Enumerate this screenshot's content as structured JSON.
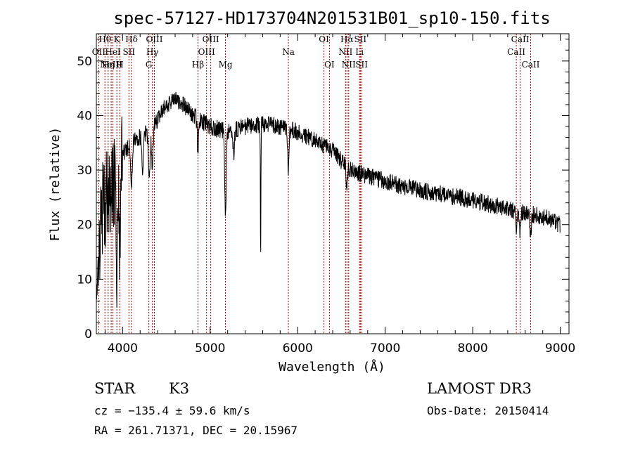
{
  "chart_data": {
    "type": "line",
    "title": "spec-57127-HD173704N201531B01_sp10-150.fits",
    "xlabel": "Wavelength (Å)",
    "ylabel": "Flux (relative)",
    "xlim": [
      3700,
      9100
    ],
    "ylim": [
      0,
      55
    ],
    "x_ticks": [
      4000,
      5000,
      6000,
      7000,
      8000,
      9000
    ],
    "y_ticks": [
      0,
      10,
      20,
      30,
      40,
      50
    ],
    "x_tick_labels": [
      "4000",
      "5000",
      "6000",
      "7000",
      "8000",
      "9000"
    ],
    "y_tick_labels": [
      "0",
      "10",
      "20",
      "30",
      "40",
      "50"
    ],
    "continuum": [
      [
        3700,
        8
      ],
      [
        3750,
        22
      ],
      [
        3800,
        24
      ],
      [
        3850,
        26
      ],
      [
        3900,
        28
      ],
      [
        3950,
        30
      ],
      [
        4000,
        33
      ],
      [
        4100,
        35
      ],
      [
        4200,
        36
      ],
      [
        4300,
        37
      ],
      [
        4400,
        39
      ],
      [
        4500,
        42
      ],
      [
        4600,
        43
      ],
      [
        4700,
        42
      ],
      [
        4800,
        40
      ],
      [
        4900,
        39
      ],
      [
        5000,
        38
      ],
      [
        5200,
        37
      ],
      [
        5400,
        38
      ],
      [
        5600,
        38.5
      ],
      [
        5800,
        38
      ],
      [
        6000,
        37
      ],
      [
        6200,
        35.5
      ],
      [
        6400,
        33.5
      ],
      [
        6600,
        30
      ],
      [
        6800,
        29
      ],
      [
        7000,
        28
      ],
      [
        7200,
        27
      ],
      [
        7500,
        26
      ],
      [
        8000,
        24.5
      ],
      [
        8500,
        22.5
      ],
      [
        8800,
        21.5
      ],
      [
        9000,
        20
      ]
    ],
    "absorption_features": [
      {
        "wavelength": 3934,
        "depth": 16,
        "width": 10
      },
      {
        "wavelength": 3969,
        "depth": 14,
        "width": 10
      },
      {
        "wavelength": 4102,
        "depth": 8,
        "width": 8
      },
      {
        "wavelength": 4227,
        "depth": 7,
        "width": 8
      },
      {
        "wavelength": 4305,
        "depth": 9,
        "width": 10
      },
      {
        "wavelength": 4340,
        "depth": 7,
        "width": 8
      },
      {
        "wavelength": 4861,
        "depth": 6,
        "width": 8
      },
      {
        "wavelength": 5175,
        "depth": 16,
        "width": 8
      },
      {
        "wavelength": 5270,
        "depth": 5,
        "width": 8
      },
      {
        "wavelength": 5577,
        "depth": 25,
        "width": 3
      },
      {
        "wavelength": 5893,
        "depth": 7,
        "width": 8
      },
      {
        "wavelength": 6563,
        "depth": 4,
        "width": 8
      },
      {
        "wavelength": 8498,
        "depth": 3,
        "width": 8
      },
      {
        "wavelength": 8542,
        "depth": 4,
        "width": 8
      },
      {
        "wavelength": 8662,
        "depth": 4,
        "width": 8
      }
    ],
    "noise": {
      "seed": 57127,
      "amplitude_blue": 9,
      "amplitude": 1.6,
      "blue_cut": 4000
    },
    "lines": [
      {
        "wavelength": 3727,
        "label": "OII",
        "row": 1
      },
      {
        "wavelength": 3798,
        "label": "Hθ",
        "row": 0
      },
      {
        "wavelength": 3835,
        "label": "Hη",
        "row": 2
      },
      {
        "wavelength": 3869,
        "label": "NeIII",
        "row": 2
      },
      {
        "wavelength": 3889,
        "label": "HeI",
        "row": 1
      },
      {
        "wavelength": 3934,
        "label": "K",
        "row": 0
      },
      {
        "wavelength": 3969,
        "label": "H",
        "row": 2
      },
      {
        "wavelength": 4072,
        "label": "SII",
        "row": 1
      },
      {
        "wavelength": 4102,
        "label": "Hδ",
        "row": 0
      },
      {
        "wavelength": 4300,
        "label": "G",
        "row": 2
      },
      {
        "wavelength": 4340,
        "label": "Hγ",
        "row": 1
      },
      {
        "wavelength": 4363,
        "label": "OIII",
        "row": 0
      },
      {
        "wavelength": 4861,
        "label": "Hβ",
        "row": 2
      },
      {
        "wavelength": 4959,
        "label": "OIII",
        "row": 1
      },
      {
        "wavelength": 5007,
        "label": "OIII",
        "row": 0
      },
      {
        "wavelength": 5175,
        "label": "Mg",
        "row": 2
      },
      {
        "wavelength": 5894,
        "label": "Na",
        "row": 1
      },
      {
        "wavelength": 6300,
        "label": "OI",
        "row": 0
      },
      {
        "wavelength": 6363,
        "label": "OI",
        "row": 2
      },
      {
        "wavelength": 6548,
        "label": "NII",
        "row": 1
      },
      {
        "wavelength": 6563,
        "label": "Hα",
        "row": 0
      },
      {
        "wavelength": 6583,
        "label": "NII",
        "row": 2
      },
      {
        "wavelength": 6707,
        "label": "Li",
        "row": 1
      },
      {
        "wavelength": 6716,
        "label": "SII",
        "row": 0
      },
      {
        "wavelength": 6731,
        "label": "SII",
        "row": 2
      },
      {
        "wavelength": 8498,
        "label": "CaII",
        "row": 1
      },
      {
        "wavelength": 8542,
        "label": "CaII",
        "row": 0
      },
      {
        "wavelength": 8662,
        "label": "CaII",
        "row": 2
      }
    ]
  },
  "info": {
    "class": "STAR",
    "subclass": "K3",
    "survey": "LAMOST DR3",
    "cz": "cz = −135.4 ± 59.6 km/s",
    "obs_date": "Obs-Date: 20150414",
    "radec": "RA = 261.71371, DEC =  20.15967"
  },
  "colors": {
    "spectrum": "#000000",
    "line_marker": "#b00000",
    "axis": "#000000"
  }
}
